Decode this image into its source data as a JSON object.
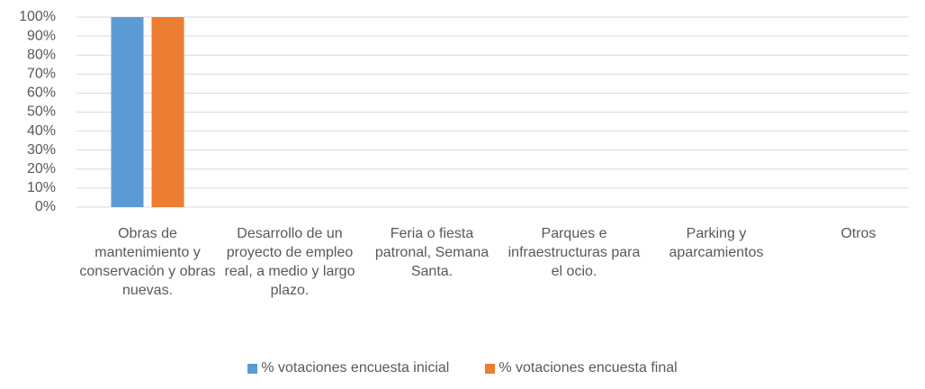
{
  "chart_data": {
    "type": "bar",
    "categories": [
      "Obras de mantenimiento y conservación y obras nuevas.",
      "Desarrollo de un proyecto de empleo real, a medio y largo plazo.",
      "Feria o fiesta patronal, Semana Santa.",
      "Parques e infraestructuras para el ocio.",
      "Parking y aparcamientos",
      "Otros"
    ],
    "series": [
      {
        "name": "% votaciones encuesta inicial",
        "color": "#5b9bd5",
        "values": [
          100,
          0,
          0,
          0,
          0,
          0
        ]
      },
      {
        "name": "% votaciones encuesta final",
        "color": "#ed7d31",
        "values": [
          100,
          0,
          0,
          0,
          0,
          0
        ]
      }
    ],
    "ylim": [
      0,
      100
    ],
    "yticks": [
      {
        "value": 0,
        "label": "0%"
      },
      {
        "value": 10,
        "label": "10%"
      },
      {
        "value": 20,
        "label": "20%"
      },
      {
        "value": 30,
        "label": "30%"
      },
      {
        "value": 40,
        "label": "40%"
      },
      {
        "value": 50,
        "label": "50%"
      },
      {
        "value": 60,
        "label": "60%"
      },
      {
        "value": 70,
        "label": "70%"
      },
      {
        "value": 80,
        "label": "80%"
      },
      {
        "value": 90,
        "label": "90%"
      },
      {
        "value": 100,
        "label": "100%"
      }
    ],
    "grid": true,
    "legend": "bottom"
  }
}
